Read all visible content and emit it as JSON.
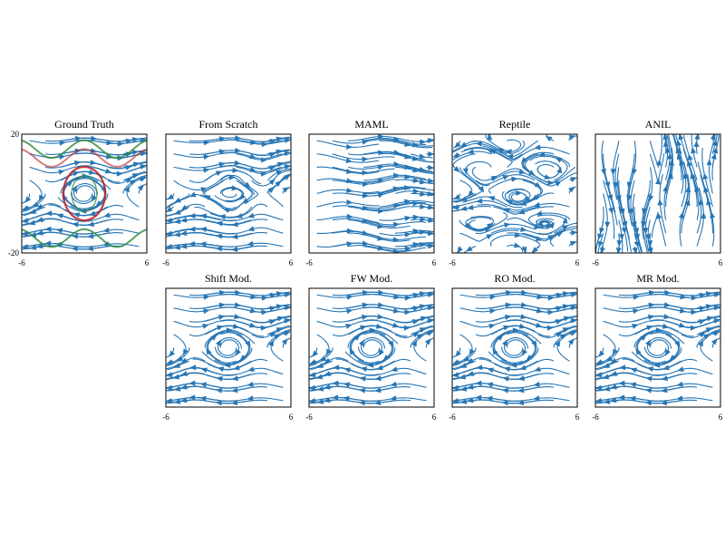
{
  "colors": {
    "stream": "#2876b4",
    "frame": "#000000",
    "traj_red": "#c0262c",
    "traj_green": "#2f8a3e"
  },
  "chart_data": [
    {
      "type": "streamplot",
      "title": "Ground Truth",
      "field": "pendulum",
      "x_ticks": [
        "-6",
        "6"
      ],
      "y_ticks": [
        "20",
        "-20"
      ],
      "xlim": [
        -6,
        6
      ],
      "ylim": [
        -20,
        20
      ],
      "overlay_trajectories": true
    },
    {
      "type": "streamplot",
      "title": "From Scratch",
      "field": "pendulum-noisy",
      "x_ticks": [
        "-6",
        "6"
      ],
      "xlim": [
        -6,
        6
      ]
    },
    {
      "type": "streamplot",
      "title": "MAML",
      "field": "wavy-flow",
      "x_ticks": [
        "-6",
        "6"
      ],
      "xlim": [
        -6,
        6
      ]
    },
    {
      "type": "streamplot",
      "title": "Reptile",
      "field": "irregular",
      "x_ticks": [
        "-6",
        "6"
      ],
      "xlim": [
        -6,
        6
      ]
    },
    {
      "type": "streamplot",
      "title": "ANIL",
      "field": "vertical",
      "x_ticks": [
        "-6",
        "6"
      ],
      "xlim": [
        -6,
        6
      ]
    },
    {
      "type": "streamplot",
      "title": "Shift Mod.",
      "field": "pendulum",
      "x_ticks": [
        "-6",
        "6"
      ],
      "xlim": [
        -6,
        6
      ]
    },
    {
      "type": "streamplot",
      "title": "FW Mod.",
      "field": "pendulum",
      "x_ticks": [
        "-6",
        "6"
      ],
      "xlim": [
        -6,
        6
      ]
    },
    {
      "type": "streamplot",
      "title": "RO Mod.",
      "field": "pendulum",
      "x_ticks": [
        "-6",
        "6"
      ],
      "xlim": [
        -6,
        6
      ]
    },
    {
      "type": "streamplot",
      "title": "MR Mod.",
      "field": "pendulum",
      "x_ticks": [
        "-6",
        "6"
      ],
      "xlim": [
        -6,
        6
      ]
    }
  ]
}
